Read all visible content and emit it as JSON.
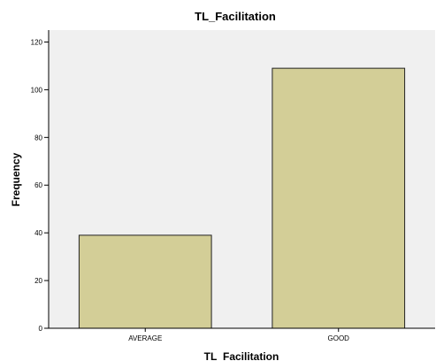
{
  "chart_data": {
    "type": "bar",
    "title": "TL_Facilitation",
    "xlabel": "TL_Facilitation",
    "ylabel": "Frequency",
    "categories": [
      "AVERAGE",
      "GOOD"
    ],
    "values": [
      39,
      109
    ],
    "ylim": [
      0,
      125
    ],
    "yticks": [
      0,
      20,
      40,
      60,
      80,
      100,
      120
    ],
    "grid": false,
    "colors": {
      "bar_fill": "#d3ce97",
      "bar_stroke": "#222222",
      "plot_background": "#f0f0f0",
      "axis": "#000000"
    }
  }
}
